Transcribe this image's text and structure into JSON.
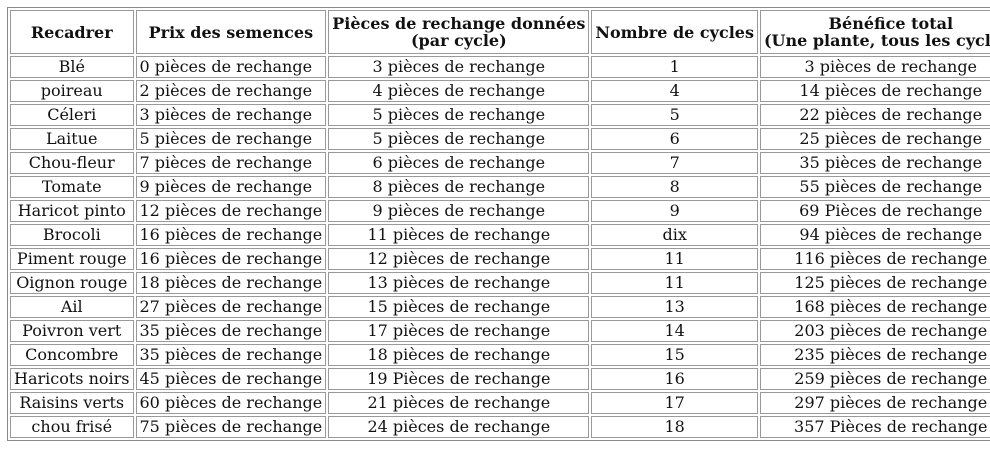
{
  "table": {
    "headers": [
      {
        "line1": "Recadrer",
        "line2": ""
      },
      {
        "line1": "Prix des semences",
        "line2": ""
      },
      {
        "line1": "Pièces de rechange données",
        "line2": "(par cycle)"
      },
      {
        "line1": "Nombre de cycles",
        "line2": ""
      },
      {
        "line1": "Bénéfice total",
        "line2": "(Une plante, tous les cycles)"
      }
    ],
    "rows": [
      [
        "Blé",
        "0 pièces de rechange",
        "3 pièces de rechange",
        "1",
        "3 pièces de rechange"
      ],
      [
        "poireau",
        "2 pièces de rechange",
        "4 pièces de rechange",
        "4",
        "14 pièces de rechange"
      ],
      [
        "Céleri",
        "3 pièces de rechange",
        "5 pièces de rechange",
        "5",
        "22 pièces de rechange"
      ],
      [
        "Laitue",
        "5 pièces de rechange",
        "5 pièces de rechange",
        "6",
        "25 pièces de rechange"
      ],
      [
        "Chou-fleur",
        "7 pièces de rechange",
        "6 pièces de rechange",
        "7",
        "35 pièces de rechange"
      ],
      [
        "Tomate",
        "9 pièces de rechange",
        "8 pièces de rechange",
        "8",
        "55 pièces de rechange"
      ],
      [
        "Haricot pinto",
        "12 pièces de rechange",
        "9 pièces de rechange",
        "9",
        "69 Pièces de rechange"
      ],
      [
        "Brocoli",
        "16 pièces de rechange",
        "11 pièces de rechange",
        "dix",
        "94 pièces de rechange"
      ],
      [
        "Piment rouge",
        "16 pièces de rechange",
        "12 pièces de rechange",
        "11",
        "116 pièces de rechange"
      ],
      [
        "Oignon rouge",
        "18 pièces de rechange",
        "13 pièces de rechange",
        "11",
        "125 pièces de rechange"
      ],
      [
        "Ail",
        "27 pièces de rechange",
        "15 pièces de rechange",
        "13",
        "168 pièces de rechange"
      ],
      [
        "Poivron vert",
        "35 pièces de rechange",
        "17 pièces de rechange",
        "14",
        "203 pièces de rechange"
      ],
      [
        "Concombre",
        "35 pièces de rechange",
        "18 pièces de rechange",
        "15",
        "235 pièces de rechange"
      ],
      [
        "Haricots noirs",
        "45 pièces de rechange",
        "19 Pièces de rechange",
        "16",
        "259 pièces de rechange"
      ],
      [
        "Raisins verts",
        "60 pièces de rechange",
        "21 pièces de rechange",
        "17",
        "297 pièces de rechange"
      ],
      [
        "chou frisé",
        "75 pièces de rechange",
        "24 pièces de rechange",
        "18",
        "357 Pièces de rechange"
      ]
    ]
  }
}
